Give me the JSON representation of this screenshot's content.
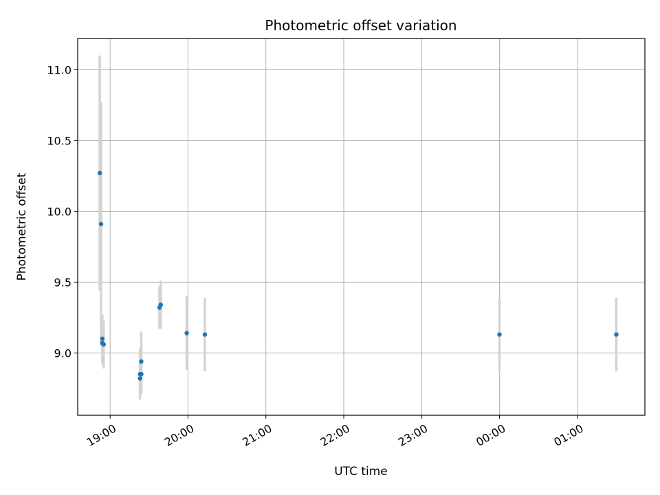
{
  "chart_data": {
    "type": "scatter",
    "title": "Photometric offset variation",
    "xlabel": "UTC time",
    "ylabel": "Photometric offset",
    "x_unit": "hours (UTC, continuous past midnight)",
    "xlim": [
      "18:35",
      "01:52"
    ],
    "ylim": [
      8.56,
      11.22
    ],
    "grid": true,
    "x_ticks": [
      {
        "label": "19:00",
        "at": "19:00"
      },
      {
        "label": "20:00",
        "at": "20:00"
      },
      {
        "label": "21:00",
        "at": "21:00"
      },
      {
        "label": "22:00",
        "at": "22:00"
      },
      {
        "label": "23:00",
        "at": "23:00"
      },
      {
        "label": "00:00",
        "at": "00:00"
      },
      {
        "label": "01:00",
        "at": "01:00"
      }
    ],
    "y_ticks": [
      {
        "label": "9.0",
        "value": 9.0
      },
      {
        "label": "9.5",
        "value": 9.5
      },
      {
        "label": "10.0",
        "value": 10.0
      },
      {
        "label": "10.5",
        "value": 10.5
      },
      {
        "label": "11.0",
        "value": 11.0
      }
    ],
    "series": [
      {
        "color": "#1f77b4",
        "errorbar_color": "#d3d3d3",
        "points": [
          {
            "x": "18:52",
            "y": 10.27,
            "err": 0.83
          },
          {
            "x": "18:53",
            "y": 9.91,
            "err": 0.86
          },
          {
            "x": "18:54",
            "y": 9.1,
            "err": 0.17
          },
          {
            "x": "18:54",
            "y": 9.07,
            "err": 0.15
          },
          {
            "x": "18:55",
            "y": 9.06,
            "err": 0.17
          },
          {
            "x": "19:23",
            "y": 8.82,
            "err": 0.11
          },
          {
            "x": "19:23",
            "y": 8.85,
            "err": 0.18
          },
          {
            "x": "19:24",
            "y": 8.85,
            "err": 0.14
          },
          {
            "x": "19:24",
            "y": 8.94,
            "err": 0.21
          },
          {
            "x": "19:38",
            "y": 9.32,
            "err": 0.15
          },
          {
            "x": "19:39",
            "y": 9.34,
            "err": 0.17
          },
          {
            "x": "19:59",
            "y": 9.14,
            "err": 0.26
          },
          {
            "x": "20:13",
            "y": 9.13,
            "err": 0.26
          },
          {
            "x": "00:00",
            "y": 9.13,
            "err": 0.26
          },
          {
            "x": "01:30",
            "y": 9.13,
            "err": 0.26
          }
        ]
      }
    ]
  }
}
